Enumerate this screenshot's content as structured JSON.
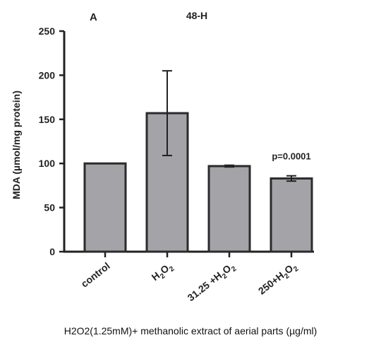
{
  "chart_data": {
    "type": "bar",
    "panel_label": "A",
    "title": "48-H",
    "ylabel": "MDA (µmol/mg protein)",
    "xlabel": "H2O2(1.25mM)+ methanolic extract of aerial parts  (µg/ml)",
    "ylim": [
      0,
      250
    ],
    "yticks": [
      0,
      50,
      100,
      150,
      200,
      250
    ],
    "grid": false,
    "categories": [
      {
        "label": "control",
        "base": "control",
        "sub": "",
        "tail": "",
        "sub2": ""
      },
      {
        "label": "H2O2",
        "base": "H",
        "sub": "2",
        "tail": "O",
        "sub2": "2"
      },
      {
        "label": "31.25 +H2O2",
        "base": "31.25 +H",
        "sub": "2",
        "tail": "O",
        "sub2": "2"
      },
      {
        "label": "250+H2O2",
        "base": "250+H",
        "sub": "2",
        "tail": "O",
        "sub2": "2"
      }
    ],
    "values": [
      100,
      157,
      97,
      83
    ],
    "errors": [
      0,
      48,
      1,
      3
    ],
    "annotation": {
      "category_index": 3,
      "text": "p=0.0001"
    },
    "colors": {
      "bar_fill": "#a3a3a8",
      "bar_stroke": "#2b2b2b",
      "axis": "#222222"
    }
  }
}
